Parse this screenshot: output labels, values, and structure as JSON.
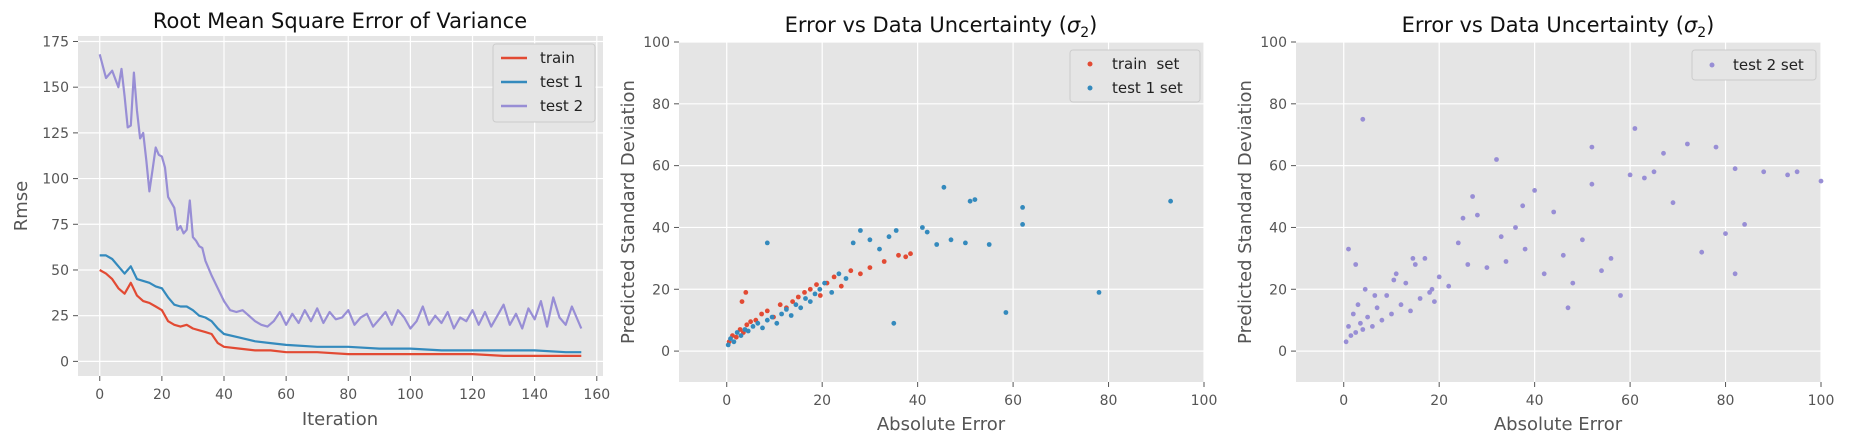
{
  "chart_data": [
    {
      "type": "line",
      "title": "Root Mean Square Error of Variance",
      "xlabel": "Iteration",
      "ylabel": "Rmse",
      "xlim": [
        -7,
        162
      ],
      "ylim": [
        -8,
        178
      ],
      "xticks": [
        0,
        20,
        40,
        60,
        80,
        100,
        120,
        140,
        160
      ],
      "yticks": [
        0,
        25,
        50,
        75,
        100,
        125,
        150,
        175
      ],
      "grid": true,
      "legend": "top-right",
      "series": [
        {
          "name": "train",
          "color": "#E24A33",
          "x": [
            0,
            2,
            4,
            6,
            8,
            10,
            12,
            14,
            16,
            18,
            20,
            22,
            24,
            26,
            28,
            30,
            32,
            34,
            36,
            38,
            40,
            45,
            50,
            55,
            60,
            70,
            80,
            90,
            100,
            110,
            120,
            130,
            140,
            150,
            155
          ],
          "y": [
            50,
            48,
            45,
            40,
            37,
            43,
            36,
            33,
            32,
            30,
            28,
            22,
            20,
            19,
            20,
            18,
            17,
            16,
            15,
            10,
            8,
            7,
            6,
            6,
            5,
            5,
            4,
            4,
            4,
            4,
            4,
            3,
            3,
            3,
            3
          ]
        },
        {
          "name": "test 1",
          "color": "#348ABD",
          "x": [
            0,
            2,
            4,
            6,
            8,
            10,
            12,
            14,
            16,
            18,
            20,
            22,
            24,
            26,
            28,
            30,
            32,
            34,
            36,
            38,
            40,
            45,
            50,
            55,
            60,
            70,
            80,
            90,
            100,
            110,
            120,
            130,
            140,
            150,
            155
          ],
          "y": [
            58,
            58,
            56,
            52,
            48,
            52,
            45,
            44,
            43,
            41,
            40,
            35,
            31,
            30,
            30,
            28,
            25,
            24,
            22,
            18,
            15,
            13,
            11,
            10,
            9,
            8,
            8,
            7,
            7,
            6,
            6,
            6,
            6,
            5,
            5
          ]
        },
        {
          "name": "test 2",
          "color": "#988ED5",
          "x": [
            0,
            2,
            4,
            6,
            7,
            8,
            9,
            10,
            11,
            12,
            13,
            14,
            15,
            16,
            17,
            18,
            19,
            20,
            21,
            22,
            24,
            25,
            26,
            27,
            28,
            29,
            30,
            31,
            32,
            33,
            34,
            36,
            38,
            40,
            42,
            44,
            46,
            48,
            50,
            52,
            54,
            56,
            58,
            60,
            62,
            64,
            66,
            68,
            70,
            72,
            74,
            76,
            78,
            80,
            82,
            84,
            86,
            88,
            90,
            92,
            94,
            96,
            98,
            100,
            102,
            104,
            106,
            108,
            110,
            112,
            114,
            116,
            118,
            120,
            122,
            124,
            126,
            128,
            130,
            132,
            134,
            136,
            138,
            140,
            142,
            144,
            146,
            148,
            150,
            152,
            155
          ],
          "y": [
            168,
            155,
            159,
            150,
            160,
            145,
            128,
            129,
            158,
            137,
            122,
            125,
            110,
            93,
            105,
            117,
            113,
            112,
            106,
            90,
            84,
            72,
            74,
            70,
            72,
            88,
            68,
            66,
            63,
            62,
            55,
            47,
            40,
            33,
            28,
            27,
            28,
            25,
            22,
            20,
            19,
            22,
            27,
            20,
            26,
            21,
            28,
            22,
            29,
            21,
            27,
            23,
            24,
            28,
            20,
            24,
            26,
            19,
            23,
            27,
            20,
            28,
            24,
            18,
            22,
            30,
            20,
            25,
            21,
            27,
            18,
            24,
            22,
            28,
            20,
            27,
            19,
            25,
            31,
            20,
            26,
            18,
            29,
            23,
            33,
            19,
            35,
            24,
            20,
            30,
            18
          ]
        }
      ]
    },
    {
      "type": "scatter",
      "title": "Error vs Data Uncertainty",
      "title_math": "σ",
      "title_math_sub": "2",
      "xlabel": "Absolute Error",
      "ylabel": "Predicted Standard Deviation",
      "xlim": [
        -10,
        100
      ],
      "ylim": [
        -10,
        100
      ],
      "xticks": [
        0,
        20,
        40,
        60,
        80,
        100
      ],
      "yticks": [
        0,
        20,
        40,
        60,
        80,
        100
      ],
      "grid": true,
      "legend": "top-right",
      "series": [
        {
          "name": "train  set",
          "color": "#E24A33",
          "x": [
            0.5,
            1.2,
            2.0,
            2.8,
            3.5,
            4.2,
            5.0,
            6.1,
            7.3,
            8.5,
            9.8,
            11.2,
            12.5,
            13.8,
            15.0,
            16.3,
            17.5,
            18.8,
            19.6,
            21.0,
            22.5,
            24.0,
            26.0,
            28.0,
            30.0,
            33.0,
            36.0,
            37.5,
            38.5,
            4.0,
            3.2
          ],
          "y": [
            3.0,
            5.0,
            4.5,
            7.0,
            6.0,
            8.5,
            9.5,
            10.0,
            12.0,
            13.0,
            11.0,
            15.0,
            14.0,
            16.0,
            17.5,
            19.0,
            20.0,
            21.5,
            18.0,
            22.0,
            24.0,
            21.0,
            26.0,
            25.0,
            27.0,
            29.0,
            31.0,
            30.5,
            31.5,
            19.0,
            16.0
          ]
        },
        {
          "name": "test 1 set",
          "color": "#348ABD",
          "x": [
            0.3,
            0.8,
            1.5,
            2.2,
            3.0,
            3.8,
            4.5,
            5.5,
            6.5,
            7.5,
            8.5,
            9.5,
            10.5,
            11.5,
            12.5,
            13.5,
            14.5,
            15.5,
            16.5,
            17.5,
            18.5,
            19.5,
            20.5,
            22.0,
            23.5,
            25.0,
            26.5,
            28.0,
            30.0,
            32.0,
            34.0,
            35.5,
            8.5,
            41.0,
            42.0,
            45.5,
            47.0,
            50.0,
            51.0,
            52.0,
            55.0,
            58.5,
            62.0,
            62.0,
            78.0,
            93.0,
            35.0,
            44.0
          ],
          "y": [
            2.0,
            4.0,
            3.0,
            6.0,
            5.0,
            7.0,
            6.5,
            8.0,
            9.0,
            7.5,
            10.0,
            11.0,
            9.0,
            12.0,
            13.5,
            11.5,
            15.0,
            14.0,
            17.0,
            16.0,
            18.5,
            20.0,
            22.0,
            19.0,
            25.0,
            23.5,
            35.0,
            39.0,
            36.0,
            33.0,
            37.0,
            39.0,
            35.0,
            40.0,
            38.5,
            53.0,
            36.0,
            35.0,
            48.5,
            49.0,
            34.5,
            12.5,
            46.5,
            41.0,
            19.0,
            48.5,
            9.0,
            34.5
          ]
        }
      ]
    },
    {
      "type": "scatter",
      "title": "Error vs Data Uncertainty",
      "title_math": "σ",
      "title_math_sub": "2",
      "xlabel": "Absolute Error",
      "ylabel": "Predicted Standard Deviation",
      "xlim": [
        -10,
        100
      ],
      "ylim": [
        -10,
        100
      ],
      "xticks": [
        0,
        20,
        40,
        60,
        80,
        100
      ],
      "yticks": [
        0,
        20,
        40,
        60,
        80,
        100
      ],
      "grid": true,
      "legend": "top-right",
      "series": [
        {
          "name": "test 2 set",
          "color": "#988ED5",
          "x": [
            0.5,
            1.0,
            1.5,
            2.0,
            2.5,
            3.0,
            3.5,
            4.0,
            4.5,
            5.0,
            6.0,
            7.0,
            8.0,
            9.0,
            10.0,
            11.0,
            12.0,
            13.0,
            14.0,
            15.0,
            16.0,
            17.0,
            18.0,
            19.0,
            20.0,
            22.0,
            24.0,
            26.0,
            28.0,
            30.0,
            32.0,
            34.0,
            36.0,
            38.0,
            40.0,
            42.0,
            44.0,
            46.0,
            48.0,
            50.0,
            52.0,
            54.0,
            56.0,
            60.0,
            61.0,
            63.0,
            65.0,
            67.0,
            69.0,
            72.0,
            75.0,
            78.0,
            80.0,
            82.0,
            84.0,
            88.0,
            93.0,
            95.0,
            100.0,
            4.0,
            1.0,
            2.5,
            6.5,
            10.5,
            14.5,
            18.5,
            25.0,
            33.0,
            52.0,
            82.0,
            27.0,
            37.5,
            47.0,
            58.0
          ],
          "y": [
            3.0,
            8.0,
            5.0,
            12.0,
            6.0,
            15.0,
            9.0,
            7.0,
            20.0,
            11.0,
            8.0,
            14.0,
            10.0,
            18.0,
            12.0,
            25.0,
            15.0,
            22.0,
            13.0,
            28.0,
            17.0,
            30.0,
            19.0,
            16.0,
            24.0,
            21.0,
            35.0,
            28.0,
            44.0,
            27.0,
            62.0,
            29.0,
            40.0,
            33.0,
            52.0,
            25.0,
            45.0,
            31.0,
            22.0,
            36.0,
            66.0,
            26.0,
            30.0,
            57.0,
            72.0,
            56.0,
            58.0,
            64.0,
            48.0,
            67.0,
            32.0,
            66.0,
            38.0,
            59.0,
            41.0,
            58.0,
            57.0,
            58.0,
            55.0,
            75.0,
            33.0,
            28.0,
            18.0,
            23.0,
            30.0,
            20.0,
            43.0,
            37.0,
            54.0,
            25.0,
            50.0,
            47.0,
            14.0,
            18.0
          ]
        }
      ]
    }
  ]
}
